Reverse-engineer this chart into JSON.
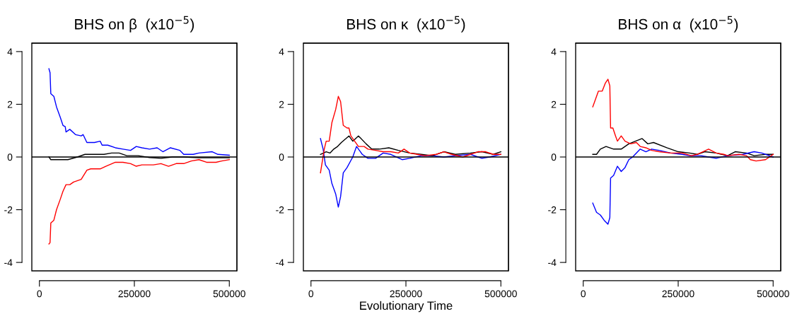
{
  "chart_data": [
    {
      "type": "line",
      "title": "BHS on β  (x10$^{−5}$)",
      "xlim": [
        -20000,
        520000
      ],
      "ylim": [
        -4.32,
        4.32
      ],
      "xticks": [
        0,
        250000,
        500000
      ],
      "yticks": [
        -4,
        -2,
        0,
        2,
        4
      ],
      "grid": false,
      "line_style": "solid",
      "marker": "none",
      "ref_lines": [
        {
          "axis": "y",
          "value": 0,
          "color": "#000000",
          "line_style": "solid"
        }
      ],
      "series": [
        {
          "color": "#0000ff",
          "x": [
            25000,
            28000,
            30000,
            38000,
            45000,
            55000,
            62000,
            68000,
            70000,
            80000,
            95000,
            110000,
            115000,
            125000,
            145000,
            160000,
            165000,
            180000,
            200000,
            220000,
            240000,
            255000,
            270000,
            290000,
            310000,
            325000,
            345000,
            370000,
            380000,
            405000,
            420000,
            455000,
            470000,
            500000
          ],
          "values": [
            3.35,
            3.2,
            2.4,
            2.3,
            1.9,
            1.5,
            1.2,
            1.15,
            0.95,
            1.05,
            0.85,
            0.8,
            0.85,
            0.55,
            0.55,
            0.6,
            0.45,
            0.45,
            0.35,
            0.3,
            0.25,
            0.4,
            0.35,
            0.3,
            0.35,
            0.2,
            0.35,
            0.25,
            0.1,
            0.1,
            0.15,
            0.2,
            0.1,
            0.07
          ]
        },
        {
          "color": "#ff0000",
          "x": [
            25000,
            28000,
            30000,
            38000,
            45000,
            55000,
            62000,
            70000,
            80000,
            90000,
            110000,
            125000,
            135000,
            160000,
            175000,
            200000,
            220000,
            240000,
            255000,
            270000,
            300000,
            320000,
            340000,
            360000,
            380000,
            400000,
            420000,
            440000,
            465000,
            480000,
            500000
          ],
          "values": [
            -3.3,
            -3.25,
            -2.5,
            -2.4,
            -2.0,
            -1.6,
            -1.3,
            -1.05,
            -1.05,
            -0.95,
            -0.85,
            -0.5,
            -0.45,
            -0.45,
            -0.35,
            -0.2,
            -0.2,
            -0.25,
            -0.35,
            -0.3,
            -0.3,
            -0.25,
            -0.35,
            -0.25,
            -0.25,
            -0.15,
            -0.1,
            -0.2,
            -0.2,
            -0.15,
            -0.1
          ]
        },
        {
          "color": "#000000",
          "x": [
            25000,
            30000,
            50000,
            75000,
            100000,
            120000,
            150000,
            170000,
            190000,
            210000,
            230000,
            260000,
            290000,
            320000,
            350000,
            380000,
            420000,
            460000,
            500000
          ],
          "values": [
            0.0,
            -0.1,
            -0.1,
            -0.1,
            0.0,
            0.1,
            0.1,
            0.1,
            0.15,
            0.15,
            0.05,
            0.05,
            -0.02,
            -0.05,
            0.0,
            0.0,
            -0.03,
            -0.03,
            -0.03
          ]
        }
      ]
    },
    {
      "type": "line",
      "title": "BHS on κ  (x10$^{−5}$)",
      "xlabel": "Evolutionary Time",
      "xlim": [
        -20000,
        520000
      ],
      "ylim": [
        -4.32,
        4.32
      ],
      "xticks": [
        0,
        250000,
        500000
      ],
      "yticks": [
        -4,
        -2,
        0,
        2,
        4
      ],
      "grid": false,
      "line_style": "solid",
      "marker": "none",
      "ref_lines": [
        {
          "axis": "y",
          "value": 0,
          "color": "#000000",
          "line_style": "solid"
        }
      ],
      "series": [
        {
          "color": "#0000ff",
          "x": [
            25000,
            32000,
            38000,
            48000,
            55000,
            65000,
            72000,
            78000,
            85000,
            95000,
            110000,
            120000,
            135000,
            150000,
            170000,
            190000,
            210000,
            240000,
            260000,
            290000,
            320000,
            350000,
            380000,
            420000,
            450000,
            470000,
            500000
          ],
          "values": [
            0.7,
            0.3,
            -0.3,
            -0.5,
            -1.0,
            -1.4,
            -1.9,
            -1.5,
            -0.6,
            -0.4,
            0.0,
            0.4,
            0.1,
            -0.05,
            -0.05,
            0.15,
            0.1,
            -0.1,
            -0.05,
            0.05,
            0.05,
            0.0,
            0.05,
            0.1,
            -0.05,
            0.0,
            0.1
          ]
        },
        {
          "color": "#000000",
          "x": [
            25000,
            40000,
            50000,
            60000,
            70000,
            80000,
            100000,
            110000,
            125000,
            145000,
            160000,
            180000,
            205000,
            230000,
            260000,
            290000,
            320000,
            350000,
            380000,
            420000,
            450000,
            480000,
            500000
          ],
          "values": [
            0.1,
            0.2,
            0.15,
            0.3,
            0.4,
            0.55,
            0.8,
            0.6,
            0.8,
            0.5,
            0.3,
            0.3,
            0.35,
            0.25,
            0.15,
            0.1,
            0.05,
            0.2,
            0.1,
            0.15,
            0.2,
            0.1,
            0.2
          ]
        },
        {
          "color": "#ff0000",
          "x": [
            25000,
            35000,
            40000,
            48000,
            55000,
            65000,
            72000,
            78000,
            85000,
            95000,
            100000,
            105000,
            115000,
            125000,
            140000,
            150000,
            170000,
            190000,
            210000,
            230000,
            245000,
            260000,
            280000,
            300000,
            330000,
            350000,
            370000,
            400000,
            420000,
            440000,
            460000,
            480000,
            500000
          ],
          "values": [
            -0.6,
            0.3,
            0.6,
            0.6,
            1.3,
            1.8,
            2.3,
            2.1,
            1.2,
            1.1,
            1.1,
            0.8,
            0.6,
            0.4,
            0.4,
            0.3,
            0.25,
            0.2,
            0.2,
            0.15,
            0.3,
            0.15,
            0.1,
            0.05,
            0.1,
            0.2,
            0.1,
            0.0,
            0.1,
            0.2,
            0.2,
            0.1,
            0.1
          ]
        }
      ]
    },
    {
      "type": "line",
      "title": "BHS on α  (x10$^{−5}$)",
      "xlim": [
        -20000,
        520000
      ],
      "ylim": [
        -4.32,
        4.32
      ],
      "xticks": [
        0,
        250000,
        500000
      ],
      "yticks": [
        -4,
        -2,
        0,
        2,
        4
      ],
      "grid": false,
      "line_style": "solid",
      "marker": "none",
      "ref_lines": [
        {
          "axis": "y",
          "value": 0,
          "color": "#000000",
          "line_style": "solid"
        }
      ],
      "series": [
        {
          "color": "#000000",
          "x": [
            25000,
            35000,
            45000,
            60000,
            80000,
            100000,
            120000,
            155000,
            170000,
            185000,
            220000,
            250000,
            280000,
            300000,
            320000,
            350000,
            380000,
            400000,
            430000,
            450000,
            480000,
            500000
          ],
          "values": [
            0.1,
            0.1,
            0.3,
            0.4,
            0.3,
            0.3,
            0.5,
            0.7,
            0.5,
            0.55,
            0.35,
            0.2,
            0.15,
            0.1,
            0.2,
            0.15,
            0.05,
            0.2,
            0.15,
            0.05,
            0.1,
            0.1
          ]
        },
        {
          "color": "#0000ff",
          "x": [
            25000,
            35000,
            45000,
            55000,
            65000,
            70000,
            72000,
            80000,
            90000,
            100000,
            110000,
            120000,
            130000,
            150000,
            165000,
            180000,
            200000,
            230000,
            260000,
            280000,
            310000,
            330000,
            350000,
            380000,
            420000,
            450000,
            470000,
            500000
          ],
          "values": [
            -1.75,
            -2.1,
            -2.2,
            -2.4,
            -2.55,
            -2.3,
            -0.8,
            -0.7,
            -0.35,
            -0.55,
            -0.4,
            -0.1,
            0.0,
            0.3,
            0.2,
            0.3,
            0.25,
            0.15,
            0.1,
            0.05,
            0.05,
            0.0,
            -0.05,
            0.05,
            0.1,
            0.2,
            0.15,
            0.0
          ]
        },
        {
          "color": "#ff0000",
          "x": [
            25000,
            30000,
            40000,
            50000,
            58000,
            65000,
            70000,
            72000,
            78000,
            85000,
            90000,
            100000,
            110000,
            125000,
            140000,
            150000,
            165000,
            180000,
            200000,
            230000,
            260000,
            285000,
            300000,
            330000,
            350000,
            370000,
            380000,
            410000,
            430000,
            440000,
            455000,
            480000,
            500000
          ],
          "values": [
            1.9,
            2.1,
            2.5,
            2.5,
            2.8,
            2.95,
            2.7,
            1.1,
            1.1,
            0.8,
            0.6,
            0.8,
            0.6,
            0.5,
            0.55,
            0.4,
            0.35,
            0.25,
            0.2,
            0.15,
            0.15,
            0.05,
            0.1,
            0.3,
            0.15,
            0.1,
            0.05,
            0.1,
            0.05,
            -0.1,
            -0.15,
            -0.1,
            0.1
          ]
        }
      ]
    }
  ]
}
